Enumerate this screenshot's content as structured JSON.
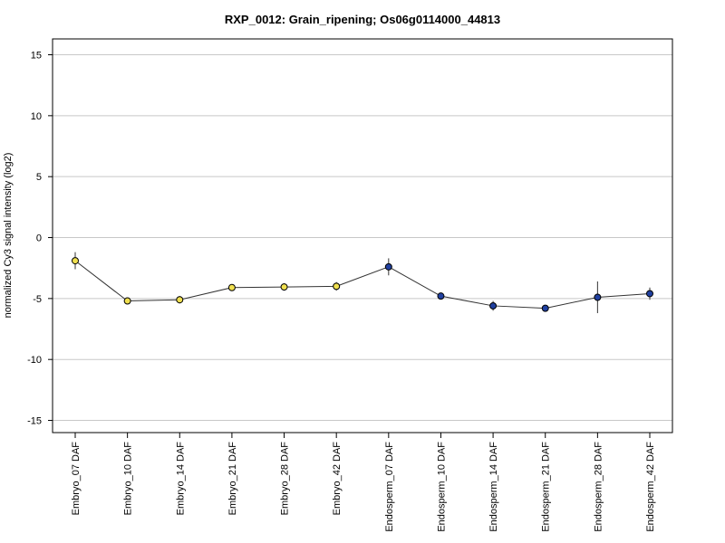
{
  "chart_data": {
    "type": "line",
    "title": "RXP_0012: Grain_ripening; Os06g0114000_44813",
    "xlabel": "",
    "ylabel": "normalized Cy3 signal intensity (log2)",
    "ylim": [
      -16,
      16.3
    ],
    "yticks": [
      15,
      10,
      5,
      0,
      -5,
      -10,
      -15
    ],
    "grid": true,
    "categories": [
      "Embryo_07 DAF",
      "Embryo_10 DAF",
      "Embryo_14 DAF",
      "Embryo_21 DAF",
      "Embryo_28 DAF",
      "Embryo_42 DAF",
      "Endosperm_07 DAF",
      "Endosperm_10 DAF",
      "Endosperm_14 DAF",
      "Endosperm_21 DAF",
      "Endosperm_28 DAF",
      "Endosperm_42 DAF"
    ],
    "values": [
      -1.9,
      -5.2,
      -5.1,
      -4.1,
      -4.05,
      -4.0,
      -2.4,
      -4.8,
      -5.6,
      -5.8,
      -4.9,
      -4.6
    ],
    "errors": [
      0.7,
      0.15,
      0.3,
      0.15,
      0.3,
      0.35,
      0.7,
      0.25,
      0.4,
      0.2,
      1.3,
      0.5
    ],
    "point_colors": [
      "#f0e050",
      "#f0e050",
      "#f0e050",
      "#f0e050",
      "#f0e050",
      "#f0e050",
      "#2040a0",
      "#2040a0",
      "#2040a0",
      "#2040a0",
      "#2040a0",
      "#2040a0"
    ]
  }
}
